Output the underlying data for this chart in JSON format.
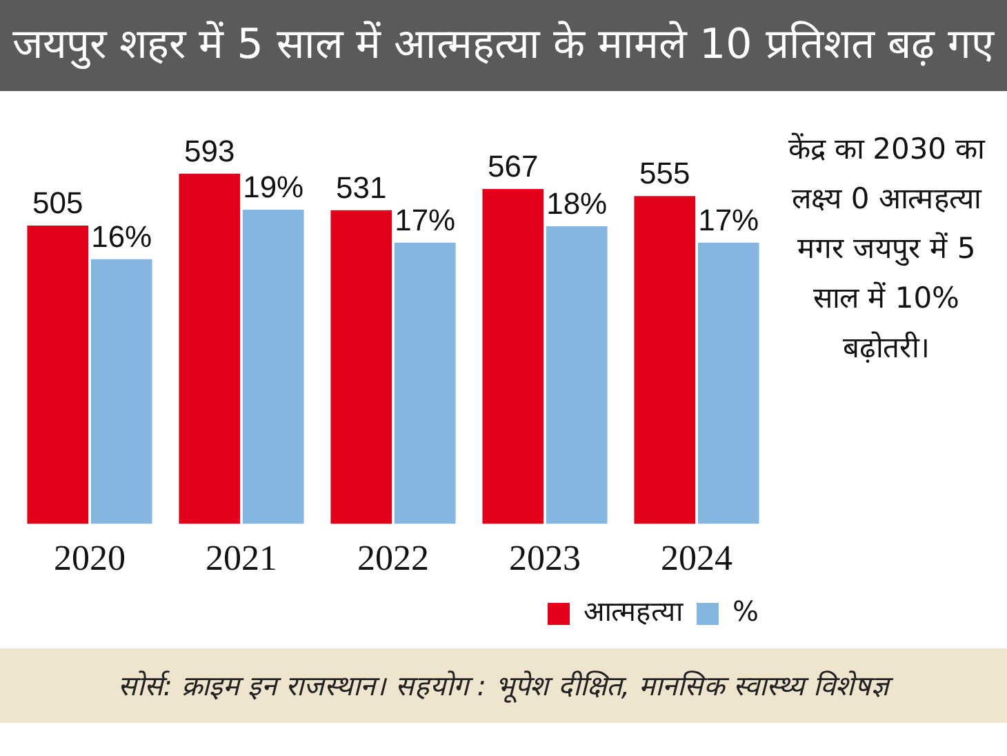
{
  "chart_data": {
    "type": "bar",
    "title": "जयपुर शहर में 5 साल में आत्महत्या के मामले 10 प्रतिशत बढ़ गए",
    "categories": [
      "2020",
      "2021",
      "2022",
      "2023",
      "2024"
    ],
    "series": [
      {
        "name": "आत्महत्या",
        "color": "#e3001b",
        "values": [
          505,
          593,
          531,
          567,
          555
        ],
        "value_labels": [
          "505",
          "593",
          "531",
          "567",
          "555"
        ]
      },
      {
        "name": "%",
        "color": "#84b6e0",
        "axis": "y2",
        "values": [
          16,
          19,
          17,
          18,
          17
        ],
        "value_labels": [
          "16%",
          "19%",
          "17%",
          "18%",
          "17%"
        ]
      }
    ],
    "annotations": [
      "केंद्र का 2030 का लक्ष्य 0 आत्महत्या मगर जयपुर में 5 साल में 10% बढ़ोतरी।",
      "सोर्स: क्राइम इन राजस्थान। सहयोग : भूपेश दीक्षित, मानसिक स्वास्थ्य विशेषज्ञ"
    ],
    "legend": "bottom right",
    "grid": false,
    "tick_labels": "x"
  }
}
